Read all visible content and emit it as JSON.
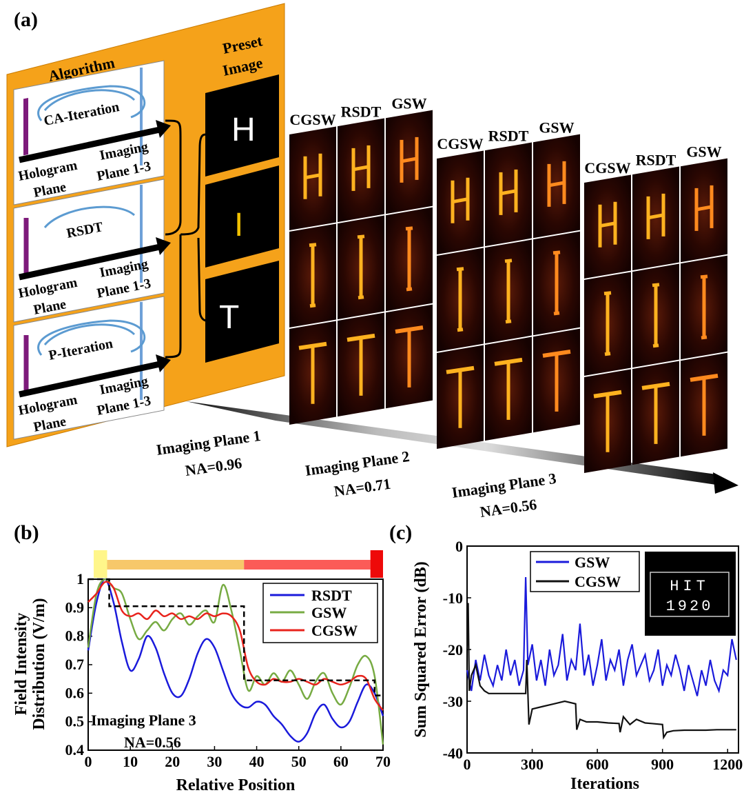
{
  "panel_labels": {
    "a": "(a)",
    "b": "(b)",
    "c": "(c)"
  },
  "panel_a": {
    "algorithm_title": "Algorithm",
    "preset_title_1": "Preset",
    "preset_title_2": "Image",
    "blocks": [
      {
        "name": "CA-Iteration",
        "hologram_1": "Hologram",
        "hologram_2": "Plane",
        "imaging_1": "Imaging",
        "imaging_2": "Plane 1-3"
      },
      {
        "name": "RSDT",
        "hologram_1": "Hologram",
        "hologram_2": "Plane",
        "imaging_1": "Imaging",
        "imaging_2": "Plane 1-3"
      },
      {
        "name": "P-Iteration",
        "hologram_1": "Hologram",
        "hologram_2": "Plane",
        "imaging_1": "Imaging",
        "imaging_2": "Plane 1-3"
      }
    ],
    "preset_letters": [
      "H",
      "I",
      "T"
    ],
    "method_headers": [
      "CGSW",
      "RSDT",
      "GSW"
    ],
    "planes": [
      {
        "label": "Imaging Plane 1",
        "na": "NA=0.96"
      },
      {
        "label": "Imaging Plane 2",
        "na": "NA=0.71"
      },
      {
        "label": "Imaging Plane 3",
        "na": "NA=0.56"
      }
    ]
  },
  "chart_data": [
    {
      "type": "line",
      "panel": "b",
      "xlabel": "Relative Position",
      "ylabel_1": "Field Intensity",
      "ylabel_2": "Distribution (V/m)",
      "xlim": [
        0,
        70
      ],
      "ylim": [
        0.4,
        1.0
      ],
      "xticks": [
        "0",
        "10",
        "20",
        "30",
        "40",
        "50",
        "60",
        "70"
      ],
      "yticks": [
        "0.4",
        "0.5",
        "0.6",
        "0.7",
        "0.8",
        "0.9",
        "1"
      ],
      "annotation_1": "Imaging Plane 3",
      "annotation_2": "NA=0.56",
      "legend": [
        "RSDT",
        "GSW",
        "CGSW"
      ],
      "colors": {
        "RSDT": "#1a1adb",
        "GSW": "#77ab43",
        "CGSW": "#e8231c",
        "target": "#000000"
      },
      "series": [
        {
          "name": "RSDT",
          "x": [
            0,
            2,
            4,
            6,
            8,
            10,
            12,
            14,
            16,
            18,
            20,
            22,
            24,
            26,
            28,
            30,
            32,
            34,
            36,
            38,
            40,
            42,
            44,
            46,
            48,
            50,
            52,
            54,
            56,
            58,
            60,
            62,
            64,
            66,
            68,
            70
          ],
          "values": [
            0.75,
            0.92,
            1.0,
            0.92,
            0.78,
            0.68,
            0.72,
            0.8,
            0.76,
            0.67,
            0.6,
            0.59,
            0.65,
            0.74,
            0.79,
            0.76,
            0.68,
            0.6,
            0.56,
            0.55,
            0.57,
            0.56,
            0.52,
            0.49,
            0.45,
            0.43,
            0.46,
            0.53,
            0.56,
            0.51,
            0.48,
            0.5,
            0.57,
            0.63,
            0.6,
            0.52
          ]
        },
        {
          "name": "GSW",
          "x": [
            0,
            2,
            4,
            6,
            8,
            10,
            12,
            14,
            16,
            18,
            20,
            22,
            24,
            26,
            28,
            30,
            32,
            34,
            36,
            38,
            40,
            42,
            44,
            46,
            48,
            50,
            52,
            54,
            56,
            58,
            60,
            62,
            64,
            66,
            68,
            70
          ],
          "values": [
            0.76,
            0.95,
            1.0,
            0.97,
            0.95,
            0.86,
            0.79,
            0.82,
            0.85,
            0.82,
            0.86,
            0.88,
            0.84,
            0.87,
            0.89,
            0.85,
            0.98,
            0.89,
            0.75,
            0.61,
            0.66,
            0.63,
            0.67,
            0.64,
            0.68,
            0.63,
            0.58,
            0.64,
            0.67,
            0.6,
            0.56,
            0.62,
            0.7,
            0.73,
            0.66,
            0.42
          ]
        },
        {
          "name": "CGSW",
          "x": [
            0,
            2,
            4,
            6,
            8,
            10,
            12,
            14,
            16,
            18,
            20,
            22,
            24,
            26,
            28,
            30,
            32,
            34,
            36,
            38,
            40,
            42,
            44,
            46,
            48,
            50,
            52,
            54,
            56,
            58,
            60,
            62,
            64,
            66,
            68,
            70
          ],
          "values": [
            0.92,
            0.95,
            0.99,
            0.97,
            0.89,
            0.87,
            0.88,
            0.86,
            0.89,
            0.87,
            0.88,
            0.86,
            0.87,
            0.86,
            0.88,
            0.87,
            0.88,
            0.87,
            0.82,
            0.69,
            0.64,
            0.63,
            0.65,
            0.64,
            0.64,
            0.65,
            0.64,
            0.63,
            0.65,
            0.64,
            0.63,
            0.64,
            0.66,
            0.65,
            0.58,
            0.54
          ]
        },
        {
          "name": "Target",
          "x": [
            0,
            4,
            4,
            5,
            5,
            37,
            37,
            68,
            68,
            70
          ],
          "values": [
            1.0,
            1.0,
            1.0,
            1.0,
            0.905,
            0.905,
            0.645,
            0.645,
            0.592,
            0.592
          ]
        }
      ],
      "color_bar": [
        "#fff68a",
        "#f7c86a",
        "#fb5b57",
        "#ee0909"
      ]
    },
    {
      "type": "line",
      "panel": "c",
      "xlabel": "Iterations",
      "ylabel": "Sum Squared Error (dB)",
      "xlim": [
        0,
        1250
      ],
      "ylim": [
        -40,
        0
      ],
      "xticks": [
        "0",
        "300",
        "600",
        "900",
        "1200"
      ],
      "yticks": [
        "0",
        "-10",
        "-20",
        "-30",
        "-40"
      ],
      "legend": [
        "GSW",
        "CGSW"
      ],
      "colors": {
        "GSW": "#1a1adb",
        "CGSW": "#111111"
      },
      "inset_text_1": "HIT",
      "inset_text_2": "1920",
      "series": [
        {
          "name": "GSW",
          "x": [
            0,
            20,
            40,
            60,
            80,
            100,
            120,
            140,
            160,
            180,
            200,
            220,
            240,
            260,
            270,
            280,
            300,
            320,
            340,
            360,
            380,
            400,
            420,
            440,
            460,
            480,
            500,
            520,
            540,
            560,
            580,
            600,
            620,
            640,
            660,
            680,
            700,
            720,
            740,
            760,
            780,
            800,
            820,
            840,
            860,
            880,
            900,
            920,
            940,
            960,
            980,
            1000,
            1020,
            1040,
            1060,
            1080,
            1100,
            1120,
            1140,
            1160,
            1180,
            1200,
            1220,
            1240
          ],
          "values": [
            -24,
            -28,
            -22,
            -26,
            -21,
            -25,
            -27,
            -23,
            -26,
            -20,
            -25,
            -22,
            -27,
            -24,
            -6,
            -23,
            -19,
            -26,
            -22,
            -27,
            -20,
            -25,
            -23,
            -17,
            -26,
            -22,
            -24,
            -15,
            -25,
            -21,
            -27,
            -23,
            -18,
            -26,
            -22,
            -24,
            -20,
            -27,
            -22,
            -19,
            -25,
            -23,
            -21,
            -26,
            -24,
            -20,
            -27,
            -23,
            -25,
            -21,
            -24,
            -28,
            -23,
            -26,
            -29,
            -24,
            -27,
            -22,
            -26,
            -28,
            -24,
            -25,
            -18,
            -22
          ]
        },
        {
          "name": "CGSW",
          "x": [
            0,
            5,
            10,
            20,
            40,
            60,
            80,
            100,
            150,
            200,
            250,
            270,
            275,
            285,
            300,
            350,
            400,
            450,
            500,
            505,
            520,
            550,
            600,
            650,
            700,
            705,
            720,
            750,
            780,
            820,
            850,
            900,
            905,
            920,
            950,
            1000,
            1050,
            1100,
            1150,
            1200,
            1240
          ],
          "values": [
            -20,
            -11,
            -28,
            -25,
            -23,
            -27,
            -28,
            -28.5,
            -28.5,
            -28.5,
            -28.5,
            -28.5,
            -22,
            -34.5,
            -31.5,
            -31,
            -30.5,
            -30,
            -30.5,
            -35.5,
            -33.5,
            -34,
            -34,
            -34.2,
            -34.3,
            -36,
            -33,
            -34.5,
            -33.5,
            -34.2,
            -34.3,
            -34.5,
            -37,
            -36,
            -35.7,
            -35.6,
            -35.6,
            -35.6,
            -35.5,
            -35.5,
            -35.5
          ]
        }
      ]
    }
  ]
}
